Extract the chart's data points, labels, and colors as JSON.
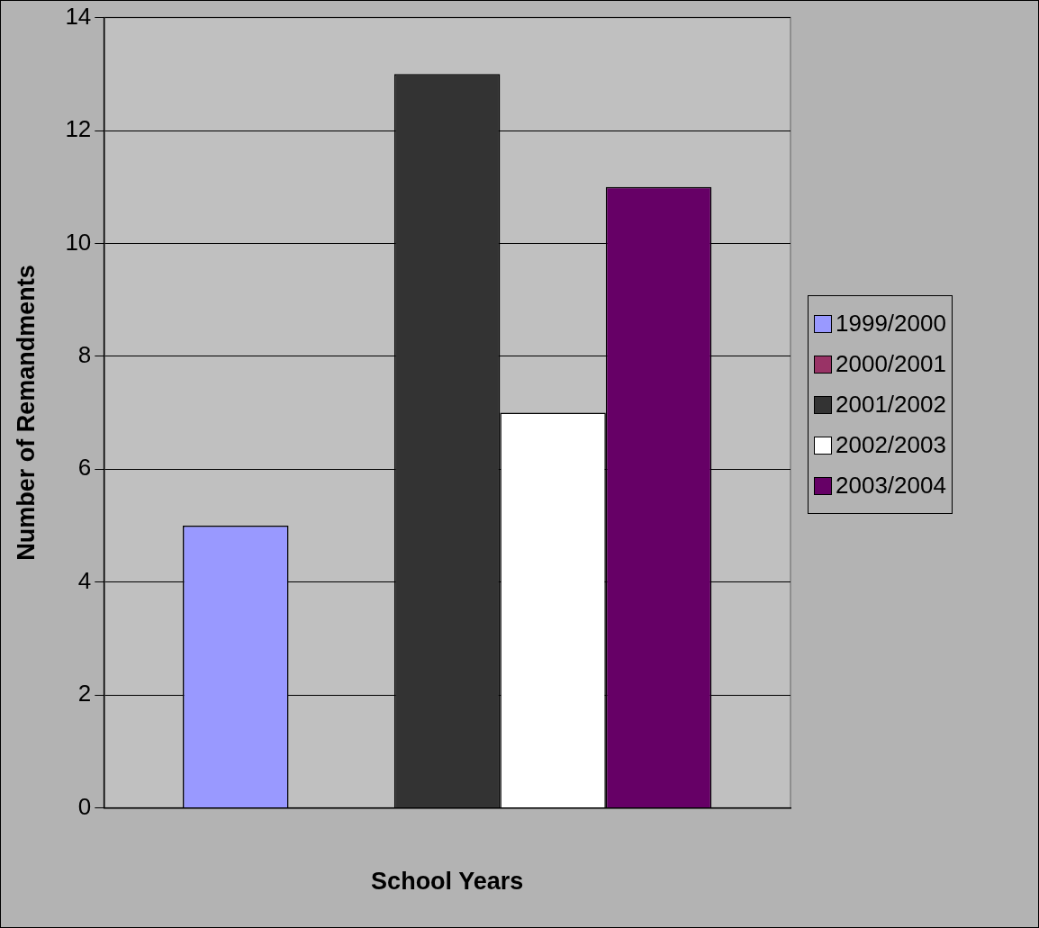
{
  "chart_data": {
    "type": "bar",
    "xlabel": "School Years",
    "ylabel": "Number of Remandments",
    "categories": [
      null
    ],
    "series": [
      {
        "name": "1999/2000",
        "color": "#9999ff",
        "values": [
          5
        ]
      },
      {
        "name": "2000/2001",
        "color": "#993366",
        "values": [
          0
        ]
      },
      {
        "name": "2001/2002",
        "color": "#333333",
        "values": [
          13
        ]
      },
      {
        "name": "2002/2003",
        "color": "#ffffff",
        "values": [
          7
        ]
      },
      {
        "name": "2003/2004",
        "color": "#660066",
        "values": [
          11
        ]
      }
    ],
    "ylim": [
      0,
      14
    ],
    "yticks": [
      0,
      2,
      4,
      6,
      8,
      10,
      12,
      14
    ],
    "grid": "y",
    "legend": "right"
  }
}
